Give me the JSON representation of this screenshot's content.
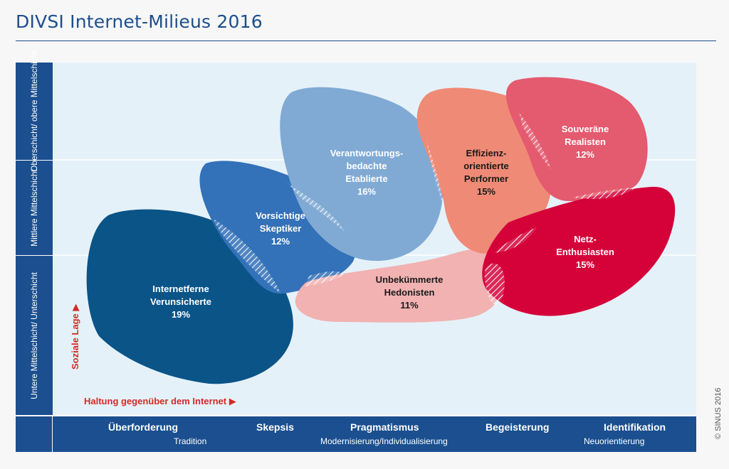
{
  "title": "DIVSI Internet-Milieus 2016",
  "y_axis": {
    "label": "Soziale Lage",
    "rows": [
      {
        "label": "Oberschicht/\nobere Mittelschicht"
      },
      {
        "label": "Mittlere\nMittelschicht"
      },
      {
        "label": "Untere Mittelschicht/\nUnterschicht"
      }
    ]
  },
  "x_axis": {
    "label": "Haltung gegenüber dem Internet",
    "major": [
      "Überforderung",
      "Skepsis",
      "Pragmatismus",
      "Begeisterung",
      "Identifikation"
    ],
    "minor": [
      "Tradition",
      "Modernisierung/Individualisierung",
      "Neuorientierung"
    ]
  },
  "milieus": [
    {
      "name": "Internetferne\nVerunsicherte",
      "share": "19%",
      "color": "#0a5488",
      "text_color": "#ffffff"
    },
    {
      "name": "Vorsichtige\nSkeptiker",
      "share": "12%",
      "color": "#3371b8",
      "text_color": "#ffffff"
    },
    {
      "name": "Verantwortungs-\nbedachte\nEtablierte",
      "share": "16%",
      "color": "#80aad4",
      "text_color": "#ffffff"
    },
    {
      "name": "Unbekümmerte\nHedonisten",
      "share": "11%",
      "color": "#f2b2b2",
      "text_color": "#1a1a1a"
    },
    {
      "name": "Effizienz-\norientierte\nPerformer",
      "share": "15%",
      "color": "#ef8a76",
      "text_color": "#1a1a1a"
    },
    {
      "name": "Souveräne\nRealisten",
      "share": "12%",
      "color": "#e45a6e",
      "text_color": "#ffffff"
    },
    {
      "name": "Netz-\nEnthusiasten",
      "share": "15%",
      "color": "#d5023a",
      "text_color": "#ffffff"
    }
  ],
  "copyright": "© SINUS 2016"
}
